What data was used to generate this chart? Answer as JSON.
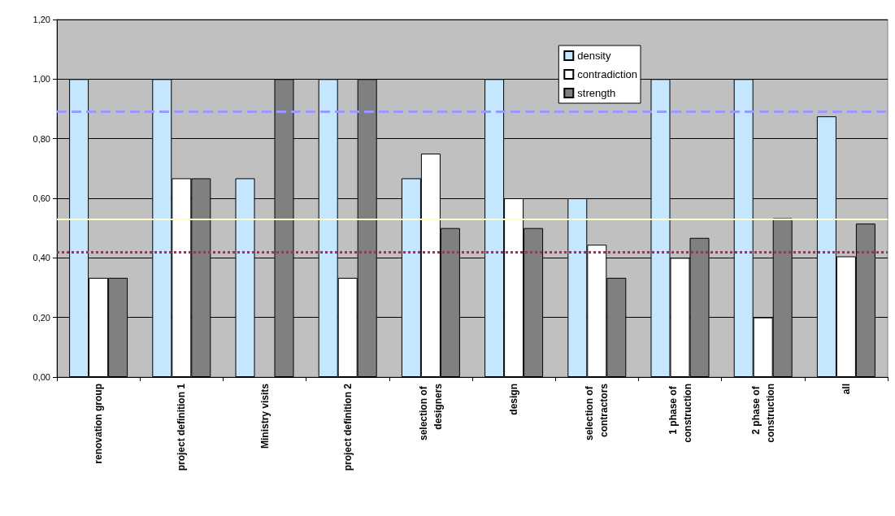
{
  "chart_data": {
    "type": "bar",
    "categories": [
      "renovation group",
      "project definition 1",
      "Ministry visits",
      "project definition 2",
      "selection of designers",
      "design",
      "selection of contractors",
      "1 phase of construction",
      "2 phase of construction",
      "all"
    ],
    "series": [
      {
        "name": "density",
        "color": "#c5e6ff",
        "values": [
          1.0,
          1.0,
          0.667,
          1.0,
          0.667,
          1.0,
          0.6,
          1.0,
          1.0,
          0.875
        ]
      },
      {
        "name": "contradiction",
        "color": "#ffffff",
        "values": [
          0.333,
          0.667,
          null,
          0.333,
          0.75,
          0.6,
          0.444,
          0.4,
          0.2,
          0.405
        ]
      },
      {
        "name": "strength",
        "color": "#808080",
        "values": [
          0.333,
          0.667,
          1.0,
          1.0,
          0.5,
          0.5,
          0.333,
          0.467,
          0.533,
          0.515
        ]
      }
    ],
    "ylim": [
      0,
      1.2
    ],
    "yticks": [
      {
        "value": 0,
        "label": "0,00"
      },
      {
        "value": 0.2,
        "label": "0,20"
      },
      {
        "value": 0.4,
        "label": "0,40"
      },
      {
        "value": 0.6,
        "label": "0,60"
      },
      {
        "value": 0.8,
        "label": "0,80"
      },
      {
        "value": 1.0,
        "label": "1,00"
      },
      {
        "value": 1.2,
        "label": "1,20"
      }
    ],
    "grid": "y",
    "legend": "top right",
    "ref_lines": [
      {
        "axis": "y",
        "value": 0.887,
        "color": "#9999ff",
        "line_style": "dashed"
      },
      {
        "axis": "y",
        "value": 0.534,
        "color": "#ffffcc",
        "line_style": "solid"
      },
      {
        "axis": "y",
        "value": 0.418,
        "color": "#993366",
        "line_style": "dotted"
      }
    ]
  }
}
